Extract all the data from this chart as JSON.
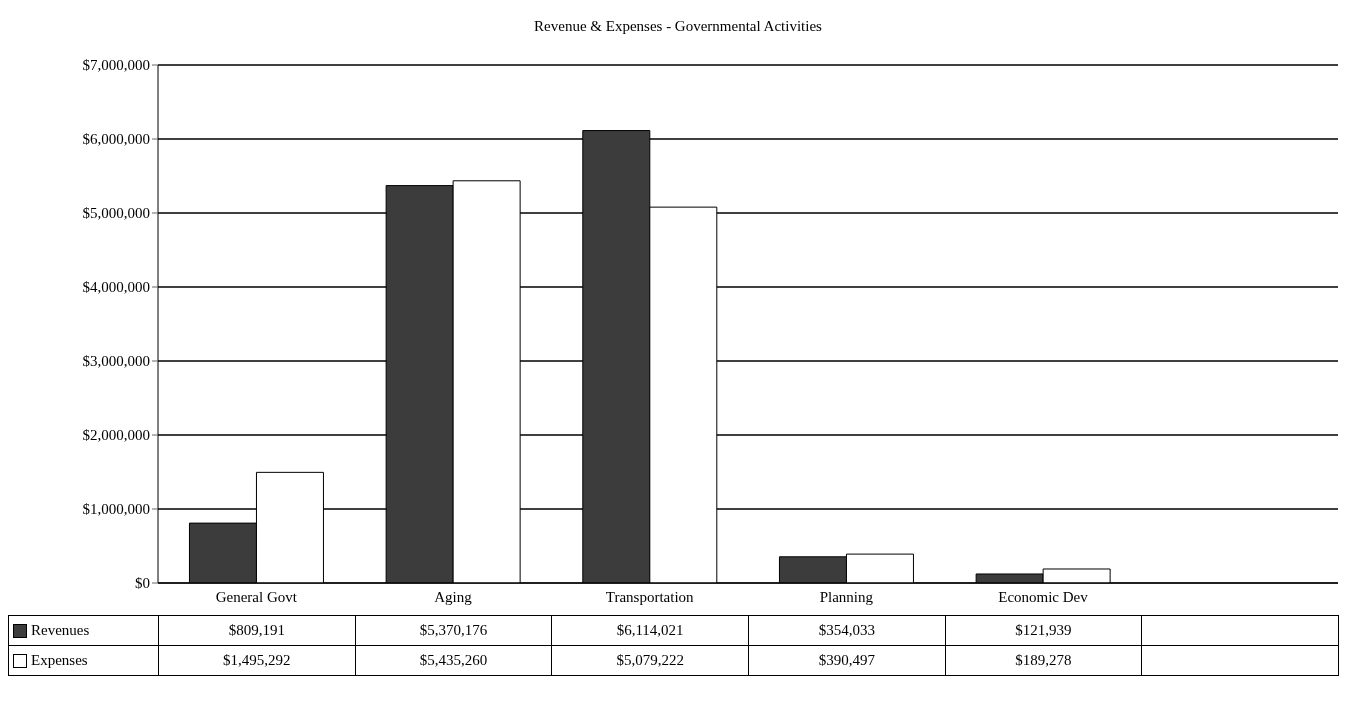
{
  "chart_data": {
    "type": "bar",
    "title": "Revenue & Expenses - Governmental Activities",
    "categories": [
      "General Govt",
      "Aging",
      "Transportation",
      "Planning",
      "Economic Dev",
      null
    ],
    "series": [
      {
        "name": "Revenues",
        "color": "#3c3c3c",
        "values": [
          809191,
          5370176,
          6114021,
          354033,
          121939,
          null
        ],
        "value_labels": [
          "$809,191",
          "$5,370,176",
          "$6,114,021",
          "$354,033",
          "$121,939",
          null
        ]
      },
      {
        "name": "Expenses",
        "color": "#ffffff",
        "values": [
          1495292,
          5435260,
          5079222,
          390497,
          189278,
          null
        ],
        "value_labels": [
          "$1,495,292",
          "$5,435,260",
          "$5,079,222",
          "$390,497",
          "$189,278",
          null
        ]
      }
    ],
    "ylim": [
      0,
      7000000
    ],
    "yticks": [
      {
        "value": 0,
        "label": "$0"
      },
      {
        "value": 1000000,
        "label": "$1,000,000"
      },
      {
        "value": 2000000,
        "label": "$2,000,000"
      },
      {
        "value": 3000000,
        "label": "$3,000,000"
      },
      {
        "value": 4000000,
        "label": "$4,000,000"
      },
      {
        "value": 5000000,
        "label": "$5,000,000"
      },
      {
        "value": 6000000,
        "label": "$6,000,000"
      },
      {
        "value": 7000000,
        "label": "$7,000,000"
      }
    ],
    "grid": "y",
    "legend": "bottom left"
  }
}
